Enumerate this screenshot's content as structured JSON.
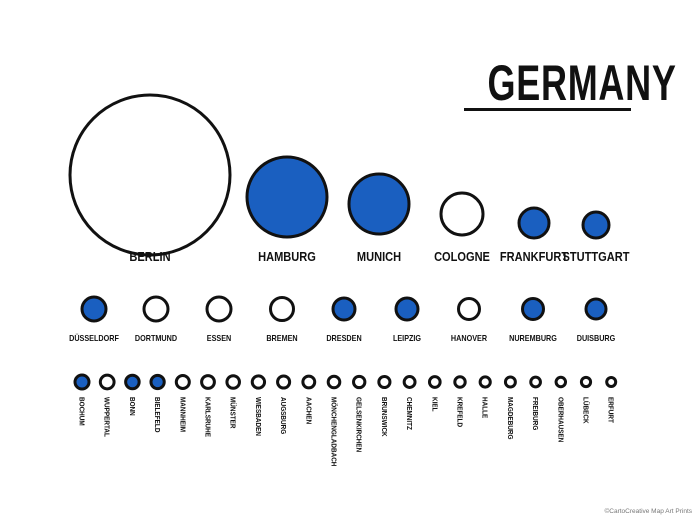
{
  "title": "GERMANY",
  "credit": "©CartoCreative Map Art Prints",
  "colors": {
    "filled": "#1a5fc0",
    "outline": "#111111",
    "empty": "#ffffff"
  },
  "tiers": {
    "large": [
      {
        "name": "BERLIN",
        "filled": false
      },
      {
        "name": "HAMBURG",
        "filled": true
      },
      {
        "name": "MUNICH",
        "filled": true
      },
      {
        "name": "COLOGNE",
        "filled": false
      },
      {
        "name": "FRANKFURT",
        "filled": true
      },
      {
        "name": "STUTTGART",
        "filled": true
      }
    ],
    "medium": [
      {
        "name": "DÜSSELDORF",
        "filled": true
      },
      {
        "name": "DORTMUND",
        "filled": false
      },
      {
        "name": "ESSEN",
        "filled": false
      },
      {
        "name": "BREMEN",
        "filled": false
      },
      {
        "name": "DRESDEN",
        "filled": true
      },
      {
        "name": "LEIPZIG",
        "filled": true
      },
      {
        "name": "HANOVER",
        "filled": false
      },
      {
        "name": "NUREMBURG",
        "filled": true
      },
      {
        "name": "DUISBURG",
        "filled": true
      }
    ],
    "small": [
      {
        "name": "BOCHUM",
        "filled": true
      },
      {
        "name": "WUPPERTAL",
        "filled": false
      },
      {
        "name": "BONN",
        "filled": true
      },
      {
        "name": "BIELEFELD",
        "filled": true
      },
      {
        "name": "MANNHEIM",
        "filled": false
      },
      {
        "name": "KARLSRUHE",
        "filled": false
      },
      {
        "name": "MÜNSTER",
        "filled": false
      },
      {
        "name": "WIESBADEN",
        "filled": false
      },
      {
        "name": "AUGSBURG",
        "filled": false
      },
      {
        "name": "AACHEN",
        "filled": false
      },
      {
        "name": "MÖNCHENGLADBACH",
        "filled": false
      },
      {
        "name": "GELSENKIRCHEN",
        "filled": false
      },
      {
        "name": "BRUNSWICK",
        "filled": false
      },
      {
        "name": "CHEMNITZ",
        "filled": false
      },
      {
        "name": "KIEL",
        "filled": false
      },
      {
        "name": "KREFELD",
        "filled": false
      },
      {
        "name": "HALLE",
        "filled": false
      },
      {
        "name": "MAGDEBURG",
        "filled": false
      },
      {
        "name": "FREIBURG",
        "filled": false
      },
      {
        "name": "OBERHAUSEN",
        "filled": false
      },
      {
        "name": "LÜBECK",
        "filled": false
      },
      {
        "name": "ERFURT",
        "filled": false
      }
    ]
  }
}
